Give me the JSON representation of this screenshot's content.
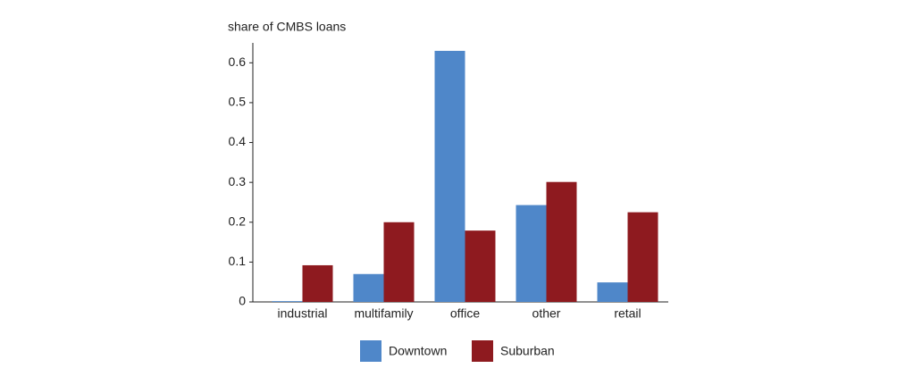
{
  "chart_data": {
    "type": "bar",
    "y_axis_label": "share of CMBS loans",
    "categories": [
      "industrial",
      "multifamily",
      "office",
      "other",
      "retail"
    ],
    "series": [
      {
        "name": "Downtown",
        "color": "#4f87c9",
        "values": [
          0.002,
          0.07,
          0.63,
          0.243,
          0.049
        ]
      },
      {
        "name": "Suburban",
        "color": "#8e1a1f",
        "values": [
          0.092,
          0.2,
          0.179,
          0.301,
          0.225
        ]
      }
    ],
    "ylim": [
      0,
      0.65
    ],
    "yticks": [
      0,
      0.1,
      0.2,
      0.3,
      0.4,
      0.5,
      0.6
    ],
    "legend": "bottom"
  }
}
